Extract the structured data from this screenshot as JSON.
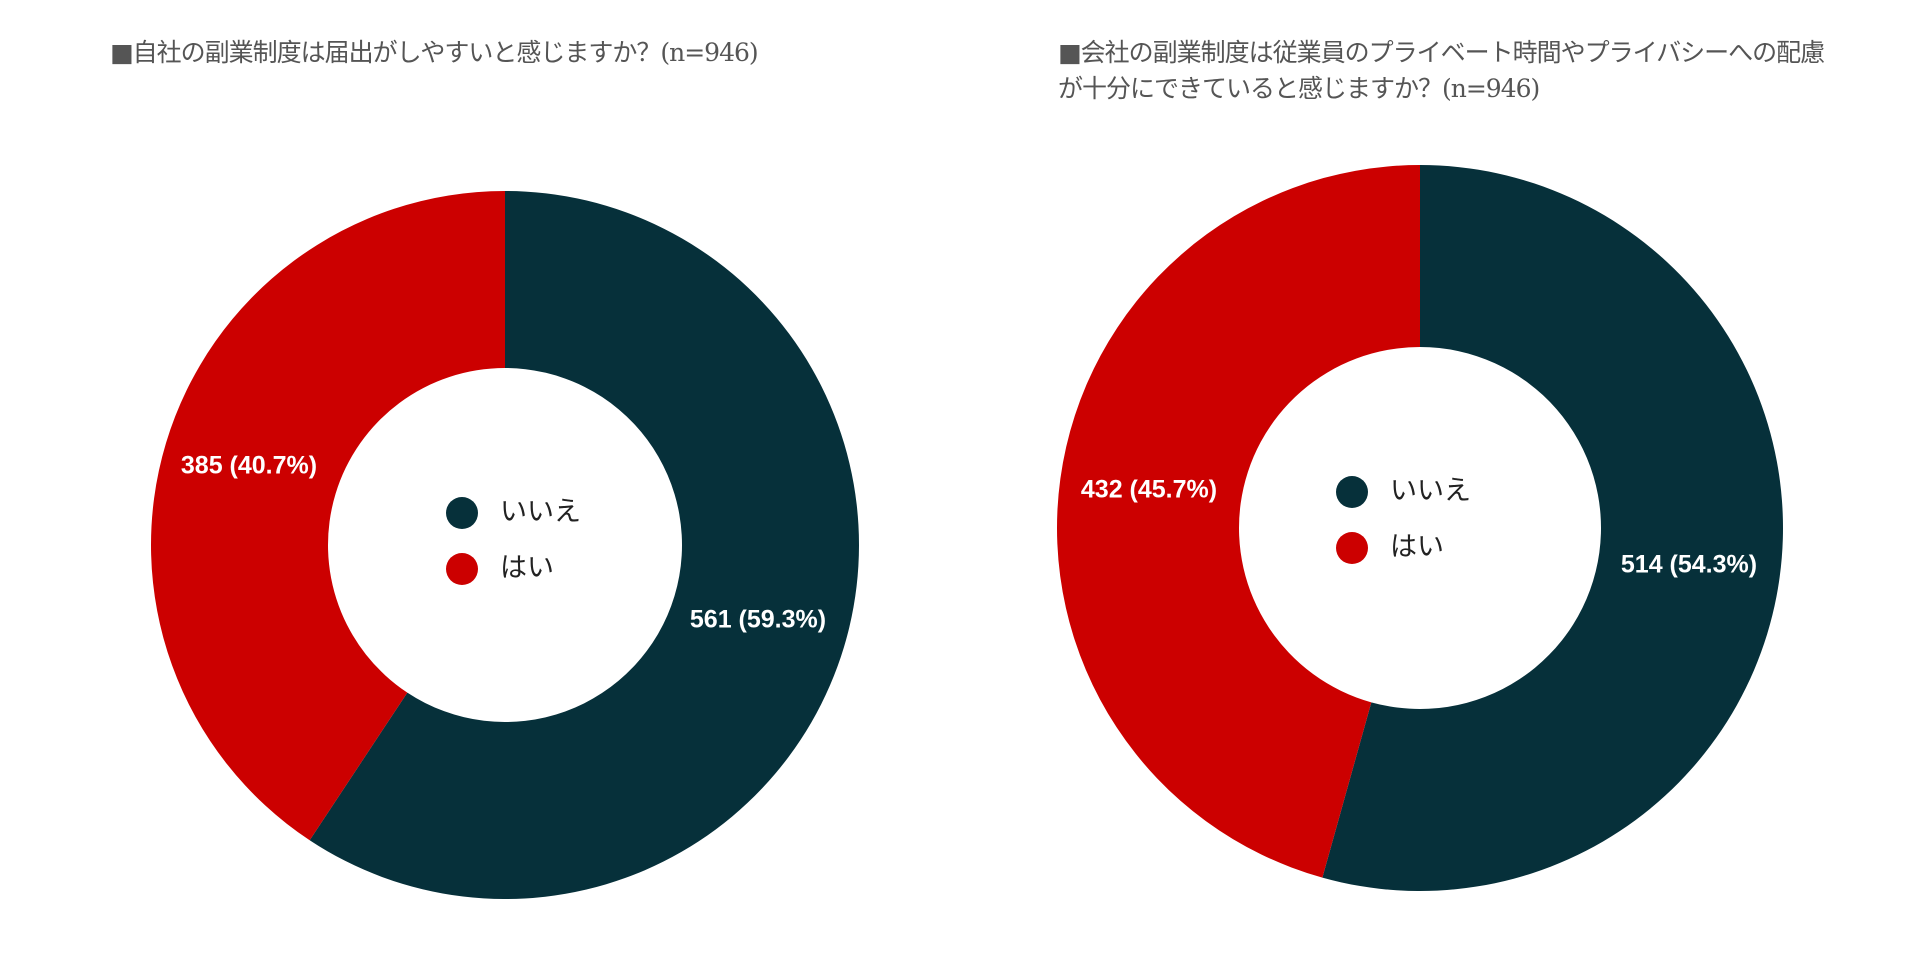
{
  "colors": {
    "no": "#06303a",
    "yes": "#cc0000"
  },
  "chart_data": [
    {
      "type": "pie",
      "donut": true,
      "title": "■自社の副業制度は届出がしやすいと感じますか？(n=946)",
      "legend_position": "center",
      "slices": [
        {
          "label": "いいえ",
          "value": 561,
          "percent": 59.3,
          "data_label": "561 (59.3%)"
        },
        {
          "label": "はい",
          "value": 385,
          "percent": 40.7,
          "data_label": "385 (40.7%)"
        }
      ]
    },
    {
      "type": "pie",
      "donut": true,
      "title": "■会社の副業制度は従業員のプライベート時間やプライバシーへの配慮が十分にできていると感じますか？(n=946)",
      "legend_position": "center",
      "slices": [
        {
          "label": "いいえ",
          "value": 514,
          "percent": 54.3,
          "data_label": "514 (54.3%)"
        },
        {
          "label": "はい",
          "value": 432,
          "percent": 45.7,
          "data_label": "432 (45.7%)"
        }
      ]
    }
  ]
}
